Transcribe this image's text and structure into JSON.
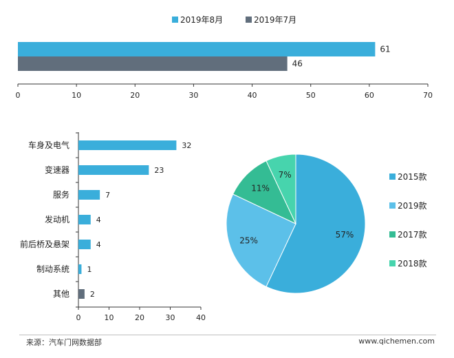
{
  "chart_data": [
    {
      "type": "bar",
      "orientation": "horizontal",
      "series": [
        {
          "name": "2019年8月",
          "values": [
            61
          ],
          "color": "#3aaedb"
        },
        {
          "name": "2019年7月",
          "values": [
            46
          ],
          "color": "#616e7c"
        }
      ],
      "xlim": [
        0,
        70
      ],
      "xticks": [
        "0",
        "10",
        "20",
        "30",
        "40",
        "50",
        "60",
        "70"
      ],
      "legend_position": "top-center",
      "grid": false
    },
    {
      "type": "bar",
      "orientation": "horizontal",
      "categories": [
        "车身及电气",
        "变速器",
        "服务",
        "发动机",
        "前后桥及悬架",
        "制动系统",
        "其他"
      ],
      "values": [
        32,
        23,
        7,
        4,
        4,
        1,
        2
      ],
      "colors": [
        "#3aaedb",
        "#3aaedb",
        "#3aaedb",
        "#3aaedb",
        "#3aaedb",
        "#3aaedb",
        "#616e7c"
      ],
      "xlim": [
        0,
        40
      ],
      "xticks": [
        "0",
        "10",
        "20",
        "30",
        "40"
      ],
      "grid": false
    },
    {
      "type": "pie",
      "slices": [
        {
          "label": "2015款",
          "value": 57,
          "text": "57%",
          "color": "#3aaedb"
        },
        {
          "label": "2019款",
          "value": 25,
          "text": "25%",
          "color": "#5cc0e9"
        },
        {
          "label": "2017款",
          "value": 11,
          "text": "11%",
          "color": "#34bc94"
        },
        {
          "label": "2018款",
          "value": 7,
          "text": "7%",
          "color": "#47d4ad"
        }
      ],
      "legend_position": "right"
    }
  ],
  "footer": {
    "source": "来源：汽车门网数据部",
    "website": "www.qichemen.com"
  }
}
